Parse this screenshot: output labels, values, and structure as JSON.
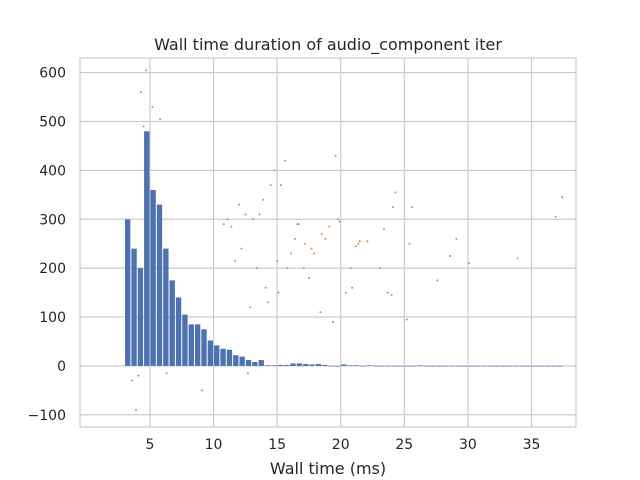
{
  "chart_data": {
    "type": "bar",
    "title": "Wall time duration of audio_component iter",
    "xlabel": "Wall time (ms)",
    "ylabel": "",
    "xlim": [
      -0.5,
      38.5
    ],
    "ylim": [
      -125,
      630
    ],
    "x_ticks": [
      5,
      10,
      15,
      20,
      25,
      30,
      35
    ],
    "y_ticks": [
      -100,
      0,
      100,
      200,
      300,
      400,
      500,
      600
    ],
    "grid": true,
    "colors": {
      "bars": "#4c72b0",
      "points": "#dd8452",
      "grid": "#cccccc",
      "background": "#ffffff"
    },
    "bars": {
      "bin_width": 0.5,
      "x": [
        3.0,
        3.5,
        4.0,
        4.5,
        5.0,
        5.5,
        6.0,
        6.5,
        7.0,
        7.5,
        8.0,
        8.5,
        9.0,
        9.5,
        10.0,
        10.5,
        11.0,
        11.5,
        12.0,
        12.5,
        13.0,
        13.5,
        14.0,
        14.5,
        15.0,
        15.5,
        16.0,
        16.5,
        17.0,
        17.5,
        18.0,
        18.5,
        19.0,
        19.5,
        20.0,
        20.5,
        21.0,
        21.5,
        22.0,
        22.5,
        23.0,
        23.5,
        24.0,
        24.5,
        25.0,
        25.5,
        26.0,
        26.5,
        27.0,
        27.5,
        28.0,
        28.5,
        29.0,
        29.5,
        30.0,
        30.5,
        31.0,
        31.5,
        32.0,
        32.5,
        33.0,
        33.5,
        34.0,
        34.5,
        35.0,
        35.5,
        36.0,
        36.5,
        37.0
      ],
      "values": [
        300,
        240,
        200,
        480,
        360,
        330,
        240,
        175,
        140,
        105,
        85,
        85,
        75,
        52,
        42,
        35,
        33,
        22,
        19,
        12,
        8,
        12,
        1,
        1,
        2,
        2,
        5,
        5,
        4,
        3,
        4,
        2,
        0,
        0,
        3,
        1,
        1,
        0,
        1,
        0,
        0,
        0,
        0,
        0,
        0,
        0,
        1,
        0,
        0,
        0,
        0,
        0,
        0,
        0,
        0,
        0,
        0,
        0,
        0,
        0,
        0,
        0,
        0,
        0,
        0,
        0,
        0,
        0,
        0
      ]
    },
    "scatter": {
      "marker_size": 1,
      "x": [
        37.4,
        36.9,
        33.9,
        30.1,
        29.1,
        28.6,
        27.6,
        25.6,
        25.4,
        25.2,
        24.3,
        24.1,
        24.0,
        23.7,
        23.4,
        23.1,
        22.1,
        21.5,
        21.4,
        21.2,
        20.9,
        20.8,
        20.4,
        19.9,
        19.8,
        19.6,
        19.4,
        19.1,
        18.8,
        18.5,
        18.4,
        17.9,
        17.7,
        17.5,
        17.2,
        17.1,
        16.7,
        16.6,
        16.4,
        16.1,
        15.8,
        15.6,
        15.3,
        15.1,
        15.0,
        14.8,
        14.5,
        14.3,
        14.1,
        13.9,
        13.6,
        13.4,
        13.1,
        12.9,
        12.5,
        12.2,
        12.0,
        11.7,
        11.4,
        11.1,
        10.8,
        3.6,
        4.3,
        4.7,
        4.5,
        5.2,
        5.8,
        6.3,
        4.1,
        3.9,
        9.1,
        12.7
      ],
      "y": [
        345,
        305,
        220,
        210,
        260,
        225,
        175,
        325,
        250,
        95,
        355,
        325,
        145,
        150,
        280,
        200,
        255,
        255,
        250,
        245,
        160,
        200,
        150,
        295,
        300,
        430,
        90,
        285,
        260,
        270,
        110,
        230,
        240,
        180,
        250,
        200,
        290,
        290,
        260,
        230,
        200,
        420,
        370,
        150,
        215,
        400,
        370,
        130,
        160,
        340,
        310,
        200,
        300,
        120,
        310,
        240,
        330,
        215,
        285,
        300,
        290,
        -30,
        560,
        605,
        490,
        530,
        505,
        -15,
        -20,
        -90,
        -50,
        -15
      ]
    }
  }
}
